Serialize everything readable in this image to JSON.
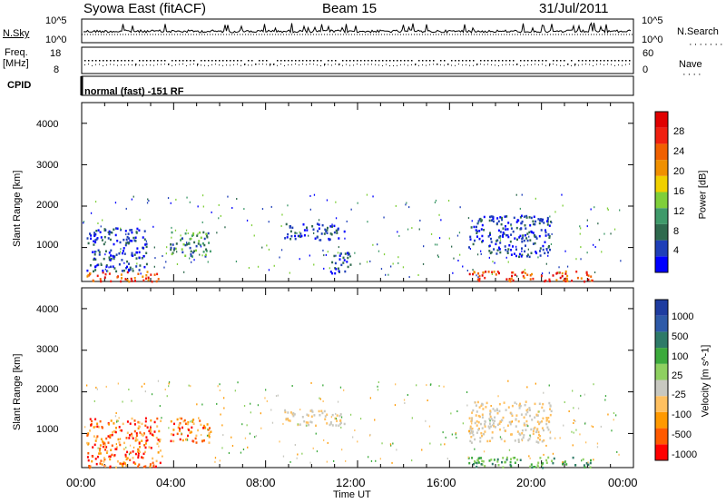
{
  "header": {
    "station": "Syowa East (fitACF)",
    "beam": "Beam 15",
    "date": "31/Jul/2011"
  },
  "top_panels": {
    "nsky_label": "N.Sky",
    "nsky_ticks": [
      "10^5",
      "10^0"
    ],
    "nsearch_label": "N.Search",
    "nsearch_ticks": [
      "10^5",
      "10^0"
    ],
    "freq_label_1": "Freq.",
    "freq_label_2": "[MHz]",
    "freq_ticks": [
      "18",
      "8"
    ],
    "nave_label": "Nave",
    "nave_ticks": [
      "60",
      "0"
    ],
    "cpid_label": "CPID",
    "cpid_text": "normal (fast) -151 RF"
  },
  "chart_data": [
    {
      "type": "heatmap",
      "name": "power-panel",
      "ylabel": "Slant Range [km]",
      "yticks": [
        "4000",
        "3000",
        "2000",
        "1000"
      ],
      "ylim": [
        180,
        4500
      ],
      "xlim": [
        0,
        24
      ],
      "colorbar": {
        "label": "Power [dB]",
        "ticks": [
          "28",
          "24",
          "20",
          "16",
          "12",
          "8",
          "4"
        ],
        "colors": [
          "#0000ff",
          "#1f3fb8",
          "#2f6a4e",
          "#3f9a6a",
          "#7fcf3a",
          "#f0d000",
          "#f09000",
          "#f06000",
          "#f02010",
          "#e00000"
        ]
      },
      "echo_regions": [
        {
          "t": [
            0.2,
            3.4
          ],
          "r": [
            200,
            450
          ],
          "level": "high"
        },
        {
          "t": [
            0.2,
            2.8
          ],
          "r": [
            450,
            1500
          ],
          "level": "low"
        },
        {
          "t": [
            3.8,
            5.6
          ],
          "r": [
            800,
            1400
          ],
          "level": "mid"
        },
        {
          "t": [
            8.8,
            11.4
          ],
          "r": [
            1200,
            1600
          ],
          "level": "low"
        },
        {
          "t": [
            10.8,
            11.8
          ],
          "r": [
            400,
            900
          ],
          "level": "low"
        },
        {
          "t": [
            16.8,
            22.2
          ],
          "r": [
            200,
            450
          ],
          "level": "high"
        },
        {
          "t": [
            16.8,
            20.4
          ],
          "r": [
            800,
            1800
          ],
          "level": "low"
        }
      ]
    },
    {
      "type": "heatmap",
      "name": "velocity-panel",
      "ylabel": "Slant Range [km]",
      "yticks": [
        "4000",
        "3000",
        "2000",
        "1000"
      ],
      "ylim": [
        180,
        4500
      ],
      "xlim": [
        0,
        24
      ],
      "xticks": [
        "00:00",
        "04:00",
        "08:00",
        "12:00",
        "16:00",
        "20:00",
        "00:00"
      ],
      "xlabel": "Time UT",
      "colorbar": {
        "label": "Velocity [m s^-1]",
        "ticks": [
          "1000",
          "500",
          "100",
          "25",
          "-25",
          "-100",
          "-500",
          "-1000"
        ],
        "colors": [
          "#ff0000",
          "#ff5a00",
          "#ff9900",
          "#ffc060",
          "#c8c8c0",
          "#8ed060",
          "#3caa3c",
          "#2e7a68",
          "#2e5aa8",
          "#1e3ca0"
        ]
      },
      "echo_regions": [
        {
          "t": [
            0.2,
            3.4
          ],
          "r": [
            200,
            1400
          ],
          "level": "negative"
        },
        {
          "t": [
            3.8,
            5.6
          ],
          "r": [
            800,
            1400
          ],
          "level": "negative"
        },
        {
          "t": [
            8.8,
            11.4
          ],
          "r": [
            1200,
            1600
          ],
          "level": "near-zero"
        },
        {
          "t": [
            16.8,
            20.4
          ],
          "r": [
            800,
            1800
          ],
          "level": "near-zero"
        },
        {
          "t": [
            16.8,
            22.2
          ],
          "r": [
            200,
            450
          ],
          "level": "positive"
        }
      ]
    }
  ]
}
